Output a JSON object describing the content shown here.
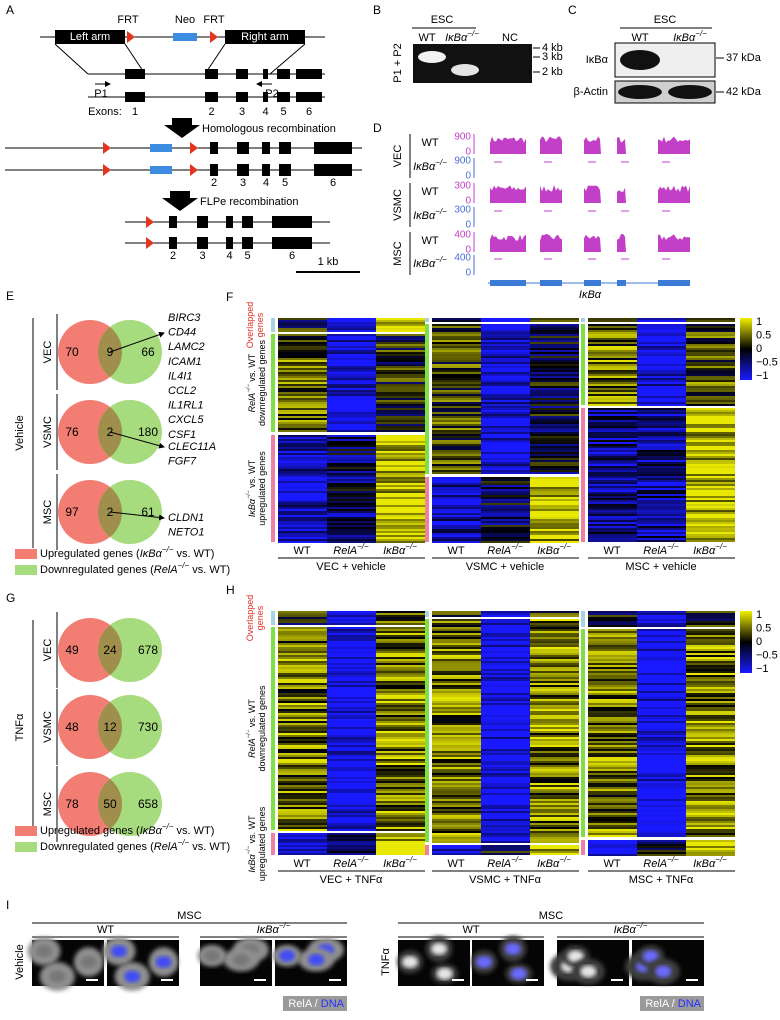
{
  "panel_a": {
    "letter": "A",
    "frt_left": "FRT",
    "neo": "Neo",
    "frt_right": "FRT",
    "left_arm": "Left arm",
    "right_arm": "Right arm",
    "p1": "P1",
    "p2": "P2",
    "exons_label": "Exons:",
    "exons_row": [
      "1",
      "2",
      "3",
      "4",
      "5",
      "6"
    ],
    "step1": "Homologous recombination",
    "targeted_row": [
      "2",
      "3",
      "4",
      "5",
      "6"
    ],
    "step2": "FLPe recombination",
    "deleted_row": [
      "2",
      "3",
      "4",
      "5",
      "6"
    ],
    "scale_bar": "1 kb"
  },
  "panel_b": {
    "letter": "B",
    "group": "ESC",
    "lanes": [
      {
        "text": "WT"
      },
      {
        "gene": "IκBα",
        "sup": "−/−"
      },
      {
        "text": "NC"
      }
    ],
    "y_label": "P1 + P2",
    "markers": [
      "4 kb",
      "3 kb",
      "2 kb"
    ]
  },
  "panel_c": {
    "letter": "C",
    "group": "ESC",
    "lanes": [
      {
        "text": "WT"
      },
      {
        "gene": "IκBα",
        "sup": "−/−"
      }
    ],
    "blots": [
      {
        "protein": "IκBα",
        "size": "37 kDa"
      },
      {
        "protein": "β-Actin",
        "size": "42 kDa"
      }
    ]
  },
  "panel_d": {
    "letter": "D",
    "groups": [
      {
        "cell": "VEC",
        "tracks": [
          {
            "genotype": {
              "text": "WT"
            },
            "scale_max": "900",
            "scale_min": "0"
          },
          {
            "genotype": {
              "gene": "IκBα",
              "sup": "−/−"
            },
            "scale_max": "900",
            "scale_min": "0"
          }
        ]
      },
      {
        "cell": "VSMC",
        "tracks": [
          {
            "genotype": {
              "text": "WT"
            },
            "scale_max": "300",
            "scale_min": "0"
          },
          {
            "genotype": {
              "gene": "IκBα",
              "sup": "−/−"
            },
            "scale_max": "300",
            "scale_min": "0"
          }
        ]
      },
      {
        "cell": "MSC",
        "tracks": [
          {
            "genotype": {
              "text": "WT"
            },
            "scale_max": "400",
            "scale_min": "0"
          },
          {
            "genotype": {
              "gene": "IκBα",
              "sup": "−/−"
            },
            "scale_max": "400",
            "scale_min": "0"
          }
        ]
      }
    ],
    "gene": "IκBα"
  },
  "panel_e": {
    "letter": "E",
    "condition": "Vehicle",
    "venns": [
      {
        "cell": "VEC",
        "left": 70,
        "overlap": 9,
        "right": 66,
        "genes": [
          "BIRC3",
          "CD44",
          "LAMC2",
          "ICAM1",
          "IL4I1",
          "CCL2",
          "IL1RL1",
          "CXCL5",
          "CSF1"
        ]
      },
      {
        "cell": "VSMC",
        "left": 76,
        "overlap": 2,
        "right": 180,
        "genes": [
          "CLEC11A",
          "FGF7"
        ]
      },
      {
        "cell": "MSC",
        "left": 97,
        "overlap": 2,
        "right": 61,
        "genes": [
          "CLDN1",
          "NETO1"
        ]
      }
    ],
    "legend": [
      {
        "before": "Upregulated genes (",
        "gene": "IκBα",
        "sup": "−/−",
        "after": " vs. WT)"
      },
      {
        "before": "Downregulated genes (",
        "gene": "RelA",
        "sup": "−/−",
        "after": " vs. WT)"
      }
    ]
  },
  "panel_f": {
    "letter": "F",
    "row_groups": {
      "overlapped": [
        "Overlapped",
        "genes"
      ],
      "down": {
        "line1": {
          "gene": "RelA",
          "sup": "−/−",
          "after": " vs. WT"
        },
        "line2": "downregulated genes"
      },
      "up": {
        "line1": {
          "gene": "IκBα",
          "sup": "−/−",
          "after": " vs. WT"
        },
        "line2": "upregulated genes"
      }
    },
    "heatmaps": [
      {
        "columns": [
          {
            "text": "WT"
          },
          {
            "gene": "RelA",
            "sup": "−/−"
          },
          {
            "gene": "IκBα",
            "sup": "−/−"
          }
        ],
        "title": "VEC + vehicle"
      },
      {
        "columns": [
          {
            "text": "WT"
          },
          {
            "gene": "RelA",
            "sup": "−/−"
          },
          {
            "gene": "IκBα",
            "sup": "−/−"
          }
        ],
        "title": "VSMC + vehicle"
      },
      {
        "columns": [
          {
            "text": "WT"
          },
          {
            "gene": "RelA",
            "sup": "−/−"
          },
          {
            "gene": "IκBα",
            "sup": "−/−"
          }
        ],
        "title": "MSC + vehicle"
      }
    ],
    "colorbar": [
      "1",
      "0.5",
      "0",
      "−0.5",
      "−1"
    ]
  },
  "panel_g": {
    "letter": "G",
    "condition": "TNFα",
    "venns": [
      {
        "cell": "VEC",
        "left": 49,
        "overlap": 24,
        "right": 678
      },
      {
        "cell": "VSMC",
        "left": 48,
        "overlap": 12,
        "right": 730
      },
      {
        "cell": "MSC",
        "left": 78,
        "overlap": 50,
        "right": 658
      }
    ],
    "legend": [
      {
        "before": "Upregulated genes (",
        "gene": "IκBα",
        "sup": "−/−",
        "after": " vs. WT)"
      },
      {
        "before": "Downregulated genes (",
        "gene": "RelA",
        "sup": "−/−",
        "after": " vs. WT)"
      }
    ]
  },
  "panel_h": {
    "letter": "H",
    "row_groups": {
      "overlapped": [
        "Overlapped",
        "genes"
      ],
      "down": {
        "line1": {
          "gene": "RelA",
          "sup": "−/−",
          "after": " vs. WT"
        },
        "line2": "downregulated genes"
      },
      "up": {
        "line1": {
          "gene": "IκBα",
          "sup": "−/−",
          "after": " vs. WT"
        },
        "line2": "upregulated genes"
      }
    },
    "heatmaps": [
      {
        "columns": [
          {
            "text": "WT"
          },
          {
            "gene": "RelA",
            "sup": "−/−"
          },
          {
            "gene": "IκBα",
            "sup": "−/−"
          }
        ],
        "title": "VEC + TNFα"
      },
      {
        "columns": [
          {
            "text": "WT"
          },
          {
            "gene": "RelA",
            "sup": "−/−"
          },
          {
            "gene": "IκBα",
            "sup": "−/−"
          }
        ],
        "title": "VSMC + TNFα"
      },
      {
        "columns": [
          {
            "text": "WT"
          },
          {
            "gene": "RelA",
            "sup": "−/−"
          },
          {
            "gene": "IκBα",
            "sup": "−/−"
          }
        ],
        "title": "MSC + TNFα"
      }
    ],
    "colorbar": [
      "1",
      "0.5",
      "0",
      "−0.5",
      "−1"
    ]
  },
  "panel_i": {
    "letter": "I",
    "groups": [
      {
        "cell": "MSC",
        "condition": "Vehicle",
        "genotypes": [
          {
            "text": "WT"
          },
          {
            "gene": "IκBα",
            "sup": "−/−"
          }
        ],
        "channels": {
          "rela": "RelA",
          "sep": " / ",
          "dna": "DNA"
        }
      },
      {
        "cell": "MSC",
        "condition": "TNFα",
        "genotypes": [
          {
            "text": "WT"
          },
          {
            "gene": "IκBα",
            "sup": "−/−"
          }
        ],
        "channels": {
          "rela": "RelA",
          "sep": " / ",
          "dna": "DNA"
        }
      }
    ]
  }
}
